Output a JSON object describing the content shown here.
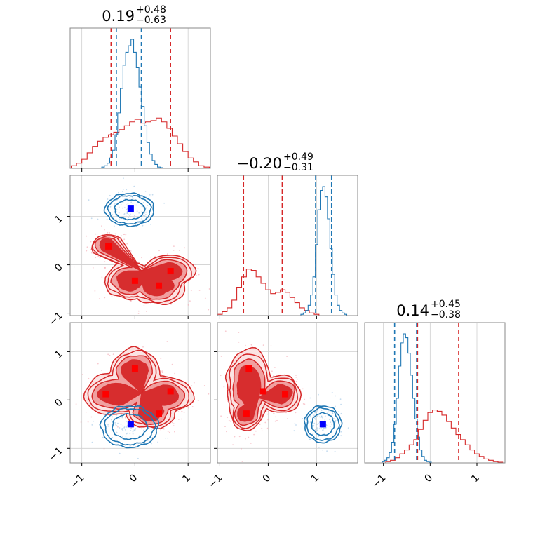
{
  "chart_data": {
    "type": "corner",
    "colors": {
      "red": "#d62728",
      "blue": "#1f77b4",
      "red_point": "#ff0000",
      "blue_point": "#0000ff",
      "red_fill_light": "#f0a0a0"
    },
    "titles": [
      {
        "value": "0.19",
        "plus": "+0.48",
        "minus": "−0.63"
      },
      {
        "value": "−0.20",
        "plus": "+0.49",
        "minus": "−0.31"
      },
      {
        "value": "0.14",
        "plus": "+0.45",
        "minus": "−0.38"
      }
    ],
    "axes": {
      "x0": {
        "range": [
          -1.22,
          1.42
        ],
        "ticks": [
          -1,
          0,
          1
        ],
        "tick_labels": [
          "−1",
          "0",
          "1"
        ]
      },
      "x1": {
        "range": [
          -1.05,
          1.85
        ],
        "ticks": [
          -1,
          0,
          1
        ],
        "tick_labels": [
          "−1",
          "0",
          "1"
        ]
      },
      "x2": {
        "range": [
          -1.4,
          1.6
        ],
        "ticks": [
          -1,
          0,
          1
        ],
        "tick_labels": [
          "−1",
          "0",
          "1"
        ]
      },
      "y1": {
        "range": [
          -1.05,
          1.85
        ],
        "ticks": [
          -1,
          0,
          1
        ],
        "tick_labels": [
          "−1",
          "0",
          "1"
        ]
      },
      "y2": {
        "range": [
          -1.3,
          1.6
        ],
        "ticks": [
          -1,
          0,
          1
        ],
        "tick_labels": [
          "−1",
          "0",
          "1"
        ]
      }
    },
    "marginals": [
      {
        "param": 0,
        "red_quantiles": [
          -0.45,
          0.67
        ],
        "blue_quantiles": [
          -0.35,
          0.12
        ],
        "red_hist": {
          "centers": [
            -1.15,
            -1.05,
            -0.95,
            -0.85,
            -0.75,
            -0.65,
            -0.55,
            -0.45,
            -0.35,
            -0.25,
            -0.15,
            -0.05,
            0.05,
            0.15,
            0.25,
            0.35,
            0.45,
            0.55,
            0.65,
            0.75,
            0.85,
            0.95,
            1.05,
            1.15,
            1.25,
            1.35
          ],
          "heights": [
            0.02,
            0.04,
            0.07,
            0.12,
            0.17,
            0.21,
            0.24,
            0.26,
            0.28,
            0.3,
            0.33,
            0.36,
            0.38,
            0.35,
            0.36,
            0.37,
            0.39,
            0.36,
            0.31,
            0.25,
            0.19,
            0.13,
            0.08,
            0.05,
            0.02,
            0.01
          ]
        },
        "blue_hist": {
          "centers": [
            -0.6,
            -0.55,
            -0.5,
            -0.45,
            -0.4,
            -0.35,
            -0.3,
            -0.25,
            -0.2,
            -0.15,
            -0.1,
            -0.05,
            0.0,
            0.05,
            0.1,
            0.15,
            0.2,
            0.25,
            0.3,
            0.35,
            0.4,
            0.45,
            0.5
          ],
          "heights": [
            0.01,
            0.02,
            0.04,
            0.08,
            0.14,
            0.26,
            0.43,
            0.62,
            0.8,
            0.9,
            0.95,
            1.0,
            0.9,
            0.78,
            0.63,
            0.48,
            0.33,
            0.2,
            0.11,
            0.06,
            0.03,
            0.01,
            0.005
          ]
        }
      },
      {
        "param": 1,
        "red_quantiles": [
          -0.51,
          0.29
        ],
        "blue_quantiles": [
          0.98,
          1.31
        ],
        "red_hist": {
          "centers": [
            -1.0,
            -0.9,
            -0.8,
            -0.7,
            -0.6,
            -0.5,
            -0.4,
            -0.3,
            -0.2,
            -0.1,
            0.0,
            0.1,
            0.2,
            0.3,
            0.4,
            0.5,
            0.6,
            0.7,
            0.8,
            0.9,
            1.0
          ],
          "heights": [
            0.01,
            0.03,
            0.06,
            0.12,
            0.22,
            0.3,
            0.36,
            0.35,
            0.3,
            0.25,
            0.2,
            0.17,
            0.18,
            0.2,
            0.18,
            0.14,
            0.1,
            0.06,
            0.04,
            0.02,
            0.01
          ]
        },
        "blue_hist": {
          "centers": [
            0.7,
            0.75,
            0.8,
            0.85,
            0.9,
            0.95,
            1.0,
            1.05,
            1.1,
            1.15,
            1.2,
            1.25,
            1.3,
            1.35,
            1.4,
            1.45,
            1.5,
            1.55,
            1.6
          ],
          "heights": [
            0.01,
            0.02,
            0.04,
            0.08,
            0.16,
            0.3,
            0.55,
            0.82,
            0.97,
            1.0,
            0.92,
            0.75,
            0.52,
            0.32,
            0.16,
            0.08,
            0.04,
            0.02,
            0.01
          ]
        }
      },
      {
        "param": 2,
        "red_quantiles": [
          -0.27,
          0.61
        ],
        "blue_quantiles": [
          -0.76,
          -0.29
        ],
        "red_hist": {
          "centers": [
            -0.9,
            -0.8,
            -0.7,
            -0.6,
            -0.5,
            -0.4,
            -0.3,
            -0.2,
            -0.1,
            0.0,
            0.1,
            0.2,
            0.3,
            0.4,
            0.5,
            0.6,
            0.7,
            0.8,
            0.9,
            1.0,
            1.1,
            1.2,
            1.3,
            1.4,
            1.5
          ],
          "heights": [
            0.01,
            0.02,
            0.04,
            0.07,
            0.1,
            0.14,
            0.18,
            0.26,
            0.33,
            0.39,
            0.41,
            0.4,
            0.37,
            0.32,
            0.27,
            0.22,
            0.18,
            0.14,
            0.1,
            0.07,
            0.05,
            0.03,
            0.02,
            0.01,
            0.005
          ]
        },
        "blue_hist": {
          "centers": [
            -1.0,
            -0.95,
            -0.9,
            -0.85,
            -0.8,
            -0.75,
            -0.7,
            -0.65,
            -0.6,
            -0.55,
            -0.5,
            -0.45,
            -0.4,
            -0.35,
            -0.3,
            -0.25,
            -0.2,
            -0.15,
            -0.1,
            -0.05,
            0.0
          ],
          "heights": [
            0.01,
            0.02,
            0.04,
            0.08,
            0.16,
            0.3,
            0.5,
            0.75,
            0.93,
            1.0,
            0.97,
            0.85,
            0.68,
            0.5,
            0.34,
            0.2,
            0.1,
            0.05,
            0.02,
            0.01,
            0.005
          ]
        }
      }
    ],
    "joints": [
      {
        "x_param": 0,
        "y_param": 1,
        "red_modes": [
          [
            -0.5,
            0.38,
            0.2,
            0.17
          ],
          [
            -0.1,
            -0.33,
            0.3,
            0.25
          ],
          [
            0.43,
            -0.43,
            0.35,
            0.25
          ],
          [
            0.65,
            -0.13,
            0.3,
            0.22
          ]
        ],
        "red_points": [
          [
            -0.5,
            0.38
          ],
          [
            0.0,
            -0.33
          ],
          [
            0.45,
            -0.43
          ],
          [
            0.67,
            -0.13
          ]
        ],
        "blue_modes": [
          [
            -0.1,
            1.14,
            0.3,
            0.22
          ]
        ],
        "blue_points": [
          [
            -0.08,
            1.16
          ]
        ]
      },
      {
        "x_param": 0,
        "y_param": 2,
        "red_modes": [
          [
            -0.35,
            0.12,
            0.4,
            0.28
          ],
          [
            0.0,
            0.6,
            0.3,
            0.3
          ],
          [
            0.55,
            0.1,
            0.35,
            0.25
          ],
          [
            0.3,
            -0.25,
            0.3,
            0.22
          ]
        ],
        "red_points": [
          [
            -0.55,
            0.12
          ],
          [
            0.0,
            0.65
          ],
          [
            0.67,
            0.18
          ],
          [
            0.45,
            -0.28
          ]
        ],
        "blue_modes": [
          [
            -0.1,
            -0.55,
            0.35,
            0.28
          ]
        ],
        "blue_points": [
          [
            -0.08,
            -0.5
          ]
        ]
      },
      {
        "x_param": 1,
        "y_param": 2,
        "red_modes": [
          [
            -0.4,
            0.3,
            0.3,
            0.5
          ],
          [
            0.25,
            0.12,
            0.28,
            0.25
          ],
          [
            -0.45,
            -0.28,
            0.22,
            0.22
          ]
        ],
        "red_points": [
          [
            -0.4,
            0.65
          ],
          [
            -0.1,
            0.18
          ],
          [
            0.35,
            0.12
          ],
          [
            -0.45,
            -0.28
          ]
        ],
        "blue_modes": [
          [
            1.13,
            -0.5,
            0.25,
            0.25
          ]
        ],
        "blue_points": [
          [
            1.13,
            -0.5
          ]
        ]
      }
    ]
  }
}
